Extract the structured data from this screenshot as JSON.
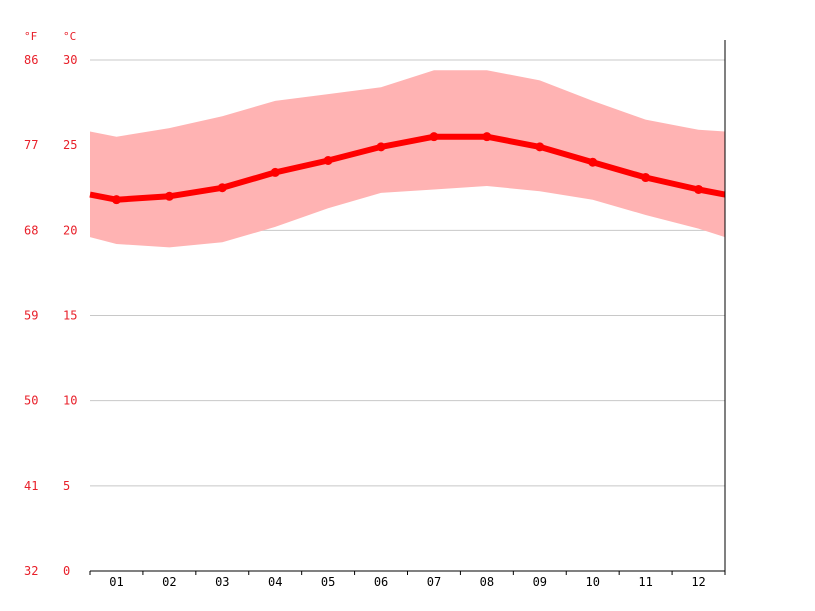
{
  "chart_data": {
    "type": "line",
    "title": "",
    "xlabel": "",
    "ylabel": "",
    "units": {
      "fahrenheit": "°F",
      "celsius": "°C"
    },
    "categories": [
      "01",
      "02",
      "03",
      "04",
      "05",
      "06",
      "07",
      "08",
      "09",
      "10",
      "11",
      "12"
    ],
    "y_ticks_celsius": [
      "30",
      "25",
      "20",
      "15",
      "10",
      "5",
      "0"
    ],
    "y_ticks_fahrenheit": [
      "86",
      "77",
      "68",
      "59",
      "50",
      "41",
      "32"
    ],
    "ylim": [
      0,
      30
    ],
    "grid": true,
    "series": [
      {
        "role": "mean",
        "values": [
          21.8,
          22.0,
          22.5,
          23.4,
          24.1,
          24.9,
          25.5,
          25.5,
          24.9,
          24.0,
          23.1,
          22.4
        ]
      },
      {
        "role": "max",
        "values": [
          25.5,
          26.0,
          26.7,
          27.6,
          28.0,
          28.4,
          29.4,
          29.4,
          28.8,
          27.6,
          26.5,
          25.9
        ]
      },
      {
        "role": "min",
        "values": [
          19.2,
          19.0,
          19.3,
          20.2,
          21.3,
          22.2,
          22.4,
          22.6,
          22.3,
          21.8,
          20.9,
          20.1
        ]
      }
    ],
    "edge_values": {
      "mean": [
        22.1,
        22.1
      ],
      "max": [
        25.8,
        25.8
      ],
      "min": [
        19.6,
        19.6
      ]
    },
    "colors": {
      "line": "#ff0000",
      "band": "#ffb3b3",
      "grid": "#c8c8c8",
      "axis": "#000000",
      "tick_text": "#e8202a",
      "month_text": "#000000"
    }
  }
}
